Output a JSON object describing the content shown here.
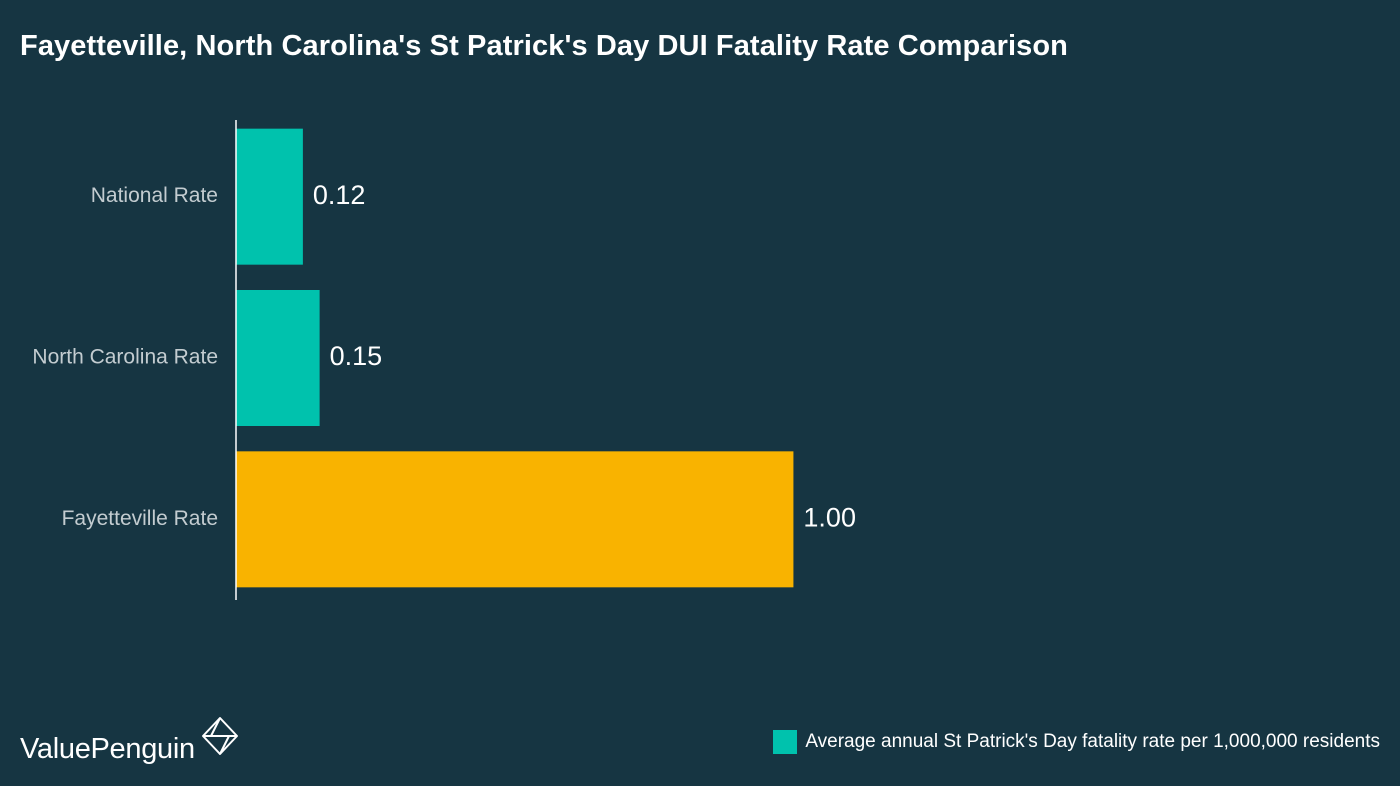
{
  "chart_data": {
    "type": "bar",
    "orientation": "horizontal",
    "title": "Fayetteville, North Carolina's St Patrick's Day DUI Fatality Rate Comparison",
    "categories": [
      "National Rate",
      "North Carolina Rate",
      "Fayetteville Rate"
    ],
    "values": [
      0.12,
      0.15,
      1.0
    ],
    "value_labels": [
      "0.12",
      "0.15",
      "1.00"
    ],
    "bar_colors": [
      "#00c2ad",
      "#00c2ad",
      "#f9b300"
    ],
    "xlim": [
      0,
      1.55
    ],
    "grid": false,
    "legend": {
      "placement": "bottom-right",
      "entries": [
        {
          "label": "Average annual St Patrick's Day fatality rate per 1,000,000 residents",
          "color": "#00c2ad"
        }
      ]
    }
  },
  "brand": {
    "name": "ValuePenguin",
    "logo_icon": "valuepenguin-logo-icon"
  },
  "colors": {
    "background": "#163542",
    "axis": "#ffffff",
    "category_text": "#c3ccd0"
  }
}
